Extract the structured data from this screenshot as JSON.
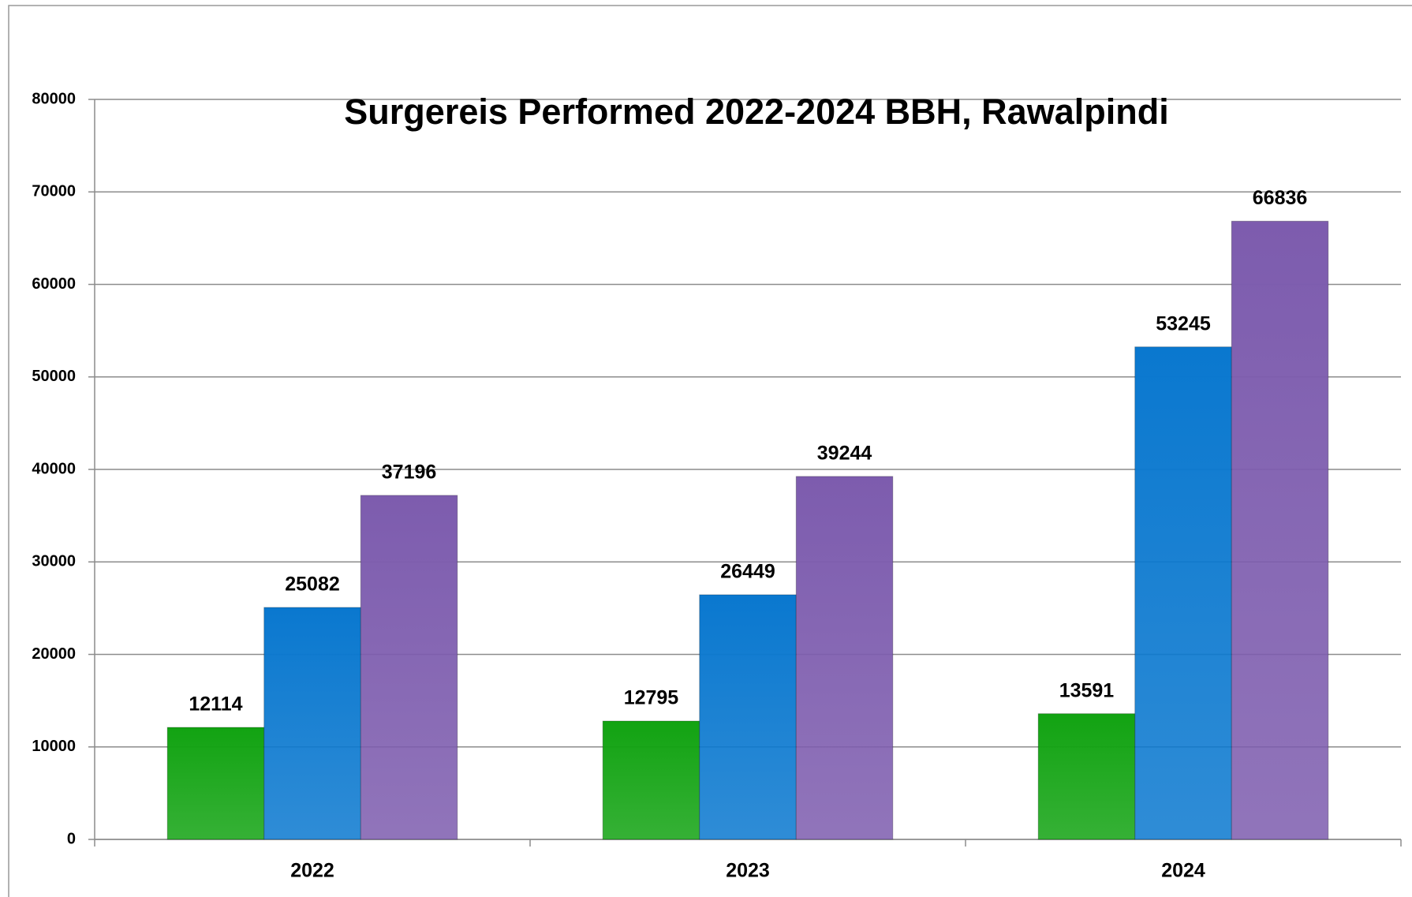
{
  "chart_data": {
    "type": "bar",
    "title": "Surgereis Performed 2022-2024 BBH, Rawalpindi",
    "categories": [
      "2022",
      "2023",
      "2024"
    ],
    "series": [
      {
        "color": "#12a312",
        "values": [
          12114,
          12795,
          13591
        ]
      },
      {
        "color": "#0a78cf",
        "values": [
          25082,
          26449,
          53245
        ]
      },
      {
        "color": "#7d5cae",
        "values": [
          37196,
          39244,
          66836
        ]
      }
    ],
    "ylim": [
      0,
      80000
    ],
    "yticks": [
      0,
      10000,
      20000,
      30000,
      40000,
      50000,
      60000,
      70000,
      80000
    ],
    "grid": true
  }
}
